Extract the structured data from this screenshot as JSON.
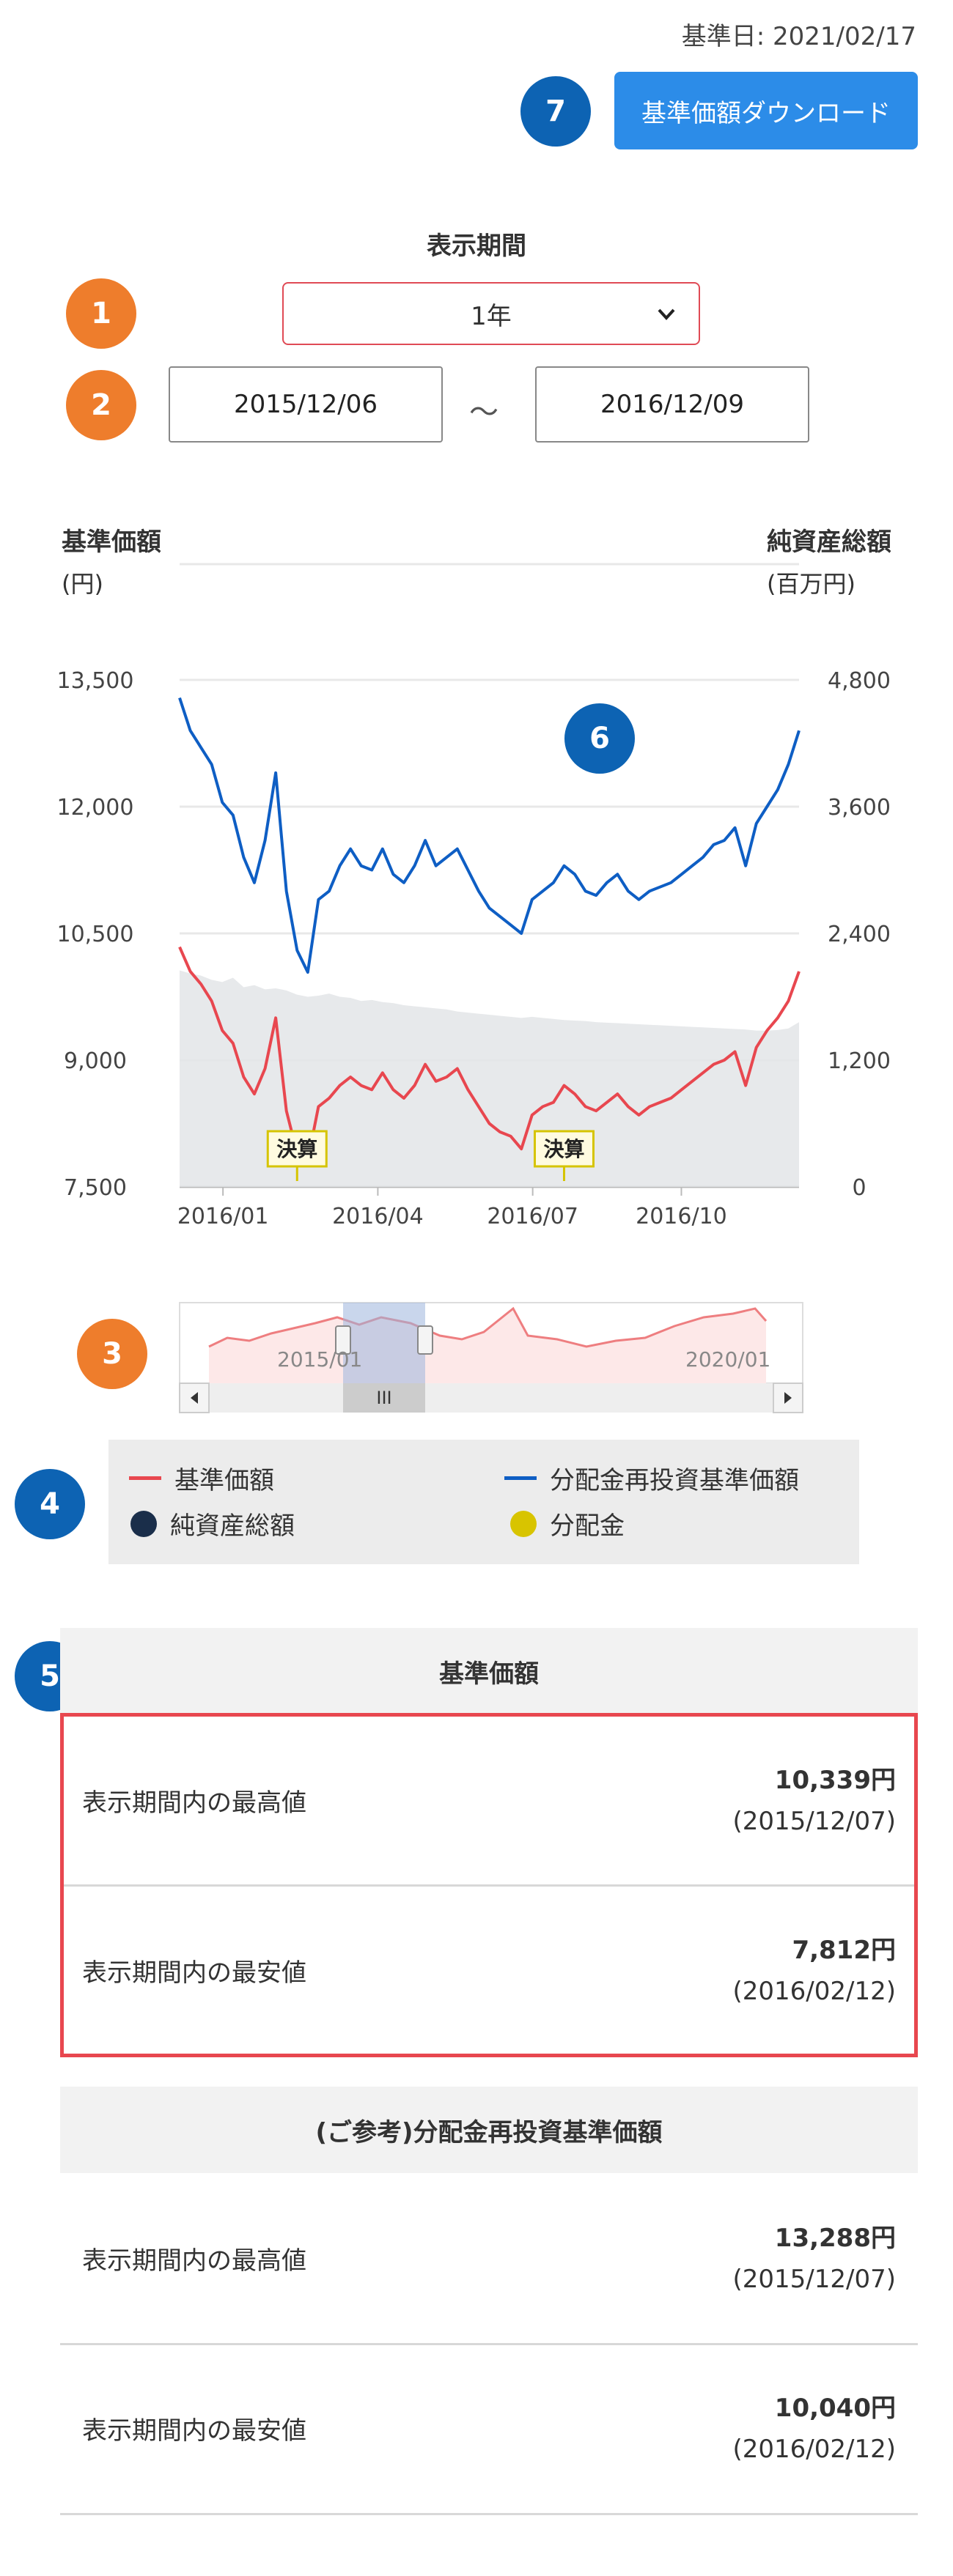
{
  "header": {
    "base_date": "基準日: 2021/02/17",
    "download_label": "基準価額ダウンロード"
  },
  "badges": {
    "b1": "1",
    "b2": "2",
    "b3": "3",
    "b4": "4",
    "b5": "5",
    "b6": "6",
    "b7": "7"
  },
  "period": {
    "title": "表示期間",
    "selected": "1年",
    "start_date": "2015/12/06",
    "separator": "～",
    "end_date": "2016/12/09"
  },
  "chart": {
    "left_title": "基準価額",
    "left_unit": "(円)",
    "right_title": "純資産総額",
    "right_unit": "(百万円)",
    "marker_label": "決算",
    "navigator_labels": [
      "2015/01",
      "2020/01"
    ],
    "navigator_handle": "III"
  },
  "chart_data": {
    "type": "line",
    "x_ticks": [
      "2016/01",
      "2016/04",
      "2016/07",
      "2016/10"
    ],
    "y_left_ticks": [
      "13,500",
      "12,000",
      "10,500",
      "9,000",
      "7,500"
    ],
    "y_right_ticks": [
      "4,800",
      "3,600",
      "2,400",
      "1,200",
      "0"
    ],
    "ylim_left": [
      7500,
      13500
    ],
    "ylim_right": [
      0,
      4800
    ],
    "grid": true,
    "colors": {
      "nav": "#e8474f",
      "reinvest": "#0e5ec4",
      "assets": "#e3e5e8"
    },
    "series": [
      {
        "name": "分配金再投資基準価額",
        "axis": "left",
        "values": [
          13288,
          12900,
          12700,
          12500,
          12050,
          11900,
          11400,
          11100,
          11600,
          12400,
          11000,
          10300,
          10040,
          10900,
          11000,
          11300,
          11500,
          11300,
          11250,
          11500,
          11200,
          11100,
          11300,
          11600,
          11300,
          11400,
          11500,
          11250,
          11000,
          10800,
          10700,
          10600,
          10500,
          10900,
          11000,
          11100,
          11300,
          11200,
          11000,
          10950,
          11100,
          11200,
          11000,
          10900,
          11000,
          11050,
          11100,
          11200,
          11300,
          11400,
          11550,
          11600,
          11750,
          11300,
          11800,
          12000,
          12200,
          12500,
          12900
        ]
      },
      {
        "name": "基準価額",
        "axis": "left",
        "values": [
          10339,
          10050,
          9900,
          9700,
          9350,
          9200,
          8800,
          8600,
          8900,
          9500,
          8400,
          7900,
          7812,
          8450,
          8550,
          8700,
          8800,
          8700,
          8650,
          8850,
          8650,
          8550,
          8700,
          8950,
          8750,
          8800,
          8900,
          8650,
          8450,
          8250,
          8150,
          8100,
          7950,
          8350,
          8450,
          8500,
          8700,
          8600,
          8450,
          8400,
          8500,
          8600,
          8450,
          8350,
          8450,
          8500,
          8550,
          8650,
          8750,
          8850,
          8950,
          9000,
          9100,
          8700,
          9150,
          9350,
          9500,
          9700,
          10050
        ]
      },
      {
        "name": "純資産総額",
        "axis": "right",
        "values": [
          2050,
          2020,
          2000,
          1960,
          1940,
          1980,
          1890,
          1910,
          1870,
          1880,
          1860,
          1820,
          1800,
          1810,
          1830,
          1800,
          1790,
          1760,
          1770,
          1750,
          1740,
          1720,
          1710,
          1700,
          1690,
          1680,
          1660,
          1650,
          1640,
          1630,
          1620,
          1610,
          1600,
          1610,
          1600,
          1590,
          1580,
          1575,
          1570,
          1560,
          1555,
          1550,
          1545,
          1540,
          1535,
          1530,
          1525,
          1520,
          1515,
          1510,
          1505,
          1500,
          1495,
          1490,
          1480,
          1480,
          1485,
          1500,
          1560
        ]
      }
    ],
    "markers": [
      {
        "label": "決算",
        "x_index": 11
      },
      {
        "label": "決算",
        "x_index": 36
      }
    ]
  },
  "legend": {
    "nav": "基準価額",
    "reinvest": "分配金再投資基準価額",
    "assets": "純資産総額",
    "dist": "分配金",
    "dist_color": "#d8c400",
    "assets_color": "#1a2e4a"
  },
  "stats": {
    "section_title": "基準価額",
    "high_label": "表示期間内の最高値",
    "high_value": "10,339円",
    "high_date": "(2015/12/07)",
    "low_label": "表示期間内の最安値",
    "low_value": "7,812円",
    "low_date": "(2016/02/12)"
  },
  "ref_stats": {
    "section_title": "(ご参考)分配金再投資基準価額",
    "high_label": "表示期間内の最高値",
    "high_value": "13,288円",
    "high_date": "(2015/12/07)",
    "low_label": "表示期間内の最安値",
    "low_value": "10,040円",
    "low_date": "(2016/02/12)"
  }
}
